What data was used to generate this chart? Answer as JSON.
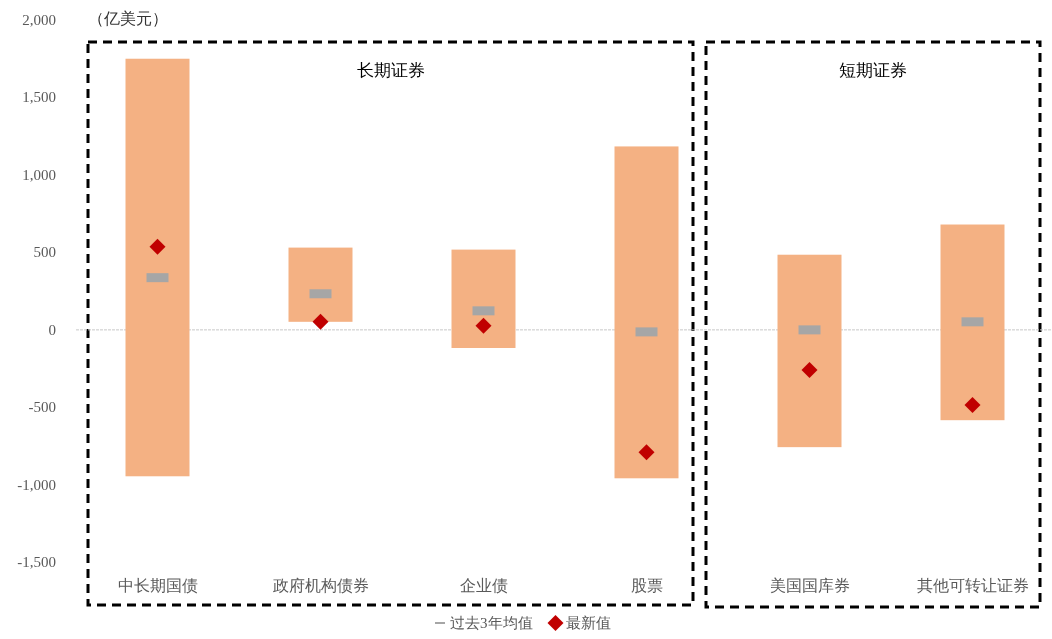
{
  "chart_data": {
    "type": "bar",
    "ylabel": "（亿美元）",
    "categories": [
      "中长期国债",
      "政府机构债券",
      "企业债",
      "股票",
      "美国国库券",
      "其他可转让证券"
    ],
    "ylim": [
      -1750,
      2000
    ],
    "yticks": [
      {
        "value": -1500,
        "label": "-1,500"
      },
      {
        "value": -1000,
        "label": "-1,000"
      },
      {
        "value": -500,
        "label": "-500"
      },
      0,
      500,
      {
        "value": 1000,
        "label": "1,000"
      },
      {
        "value": 1500,
        "label": "1,500"
      },
      {
        "value": 2000,
        "label": "2,000"
      }
    ],
    "legend": "bottom",
    "annotations": [
      "长期证券",
      "短期证券"
    ],
    "series": [
      {
        "type": "bar",
        "color": "#f4b183",
        "base": [
          -945,
          52,
          -117,
          -958,
          -757,
          -583
        ],
        "values": [
          2695,
          479,
          635,
          2142,
          1242,
          1263
        ]
      },
      {
        "type": "scatter",
        "name": "过去3年均值",
        "color": "#a6a6a6",
        "values": [
          337,
          233,
          123,
          -13,
          0,
          52
        ]
      },
      {
        "type": "scatter",
        "name": "最新值",
        "color": "#c00000",
        "marker": "diamond",
        "values": [
          537,
          52,
          26,
          -790,
          -259,
          -485
        ]
      }
    ]
  }
}
